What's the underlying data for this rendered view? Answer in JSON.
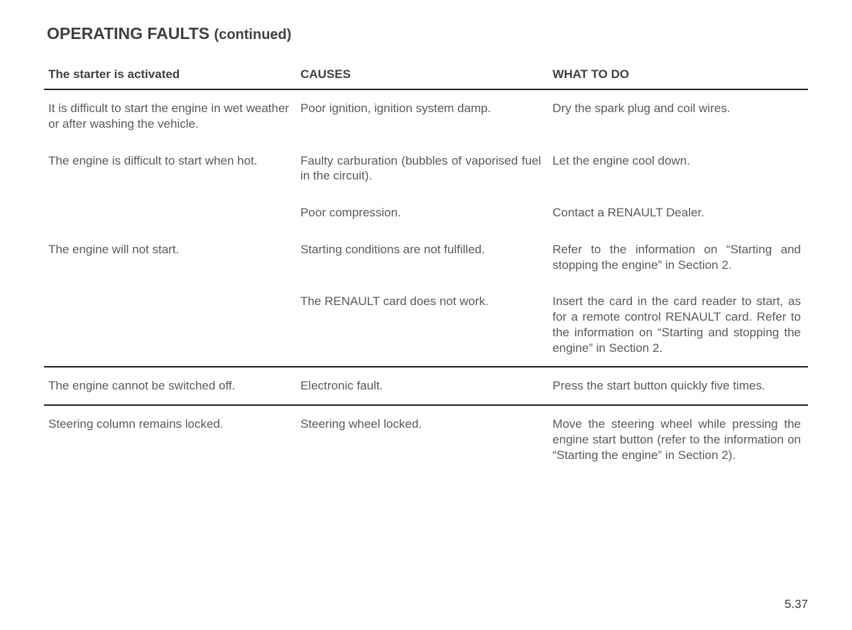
{
  "title_main": "OPERATING FAULTS",
  "title_cont": "(continued)",
  "headers": {
    "col1": "The starter is activated",
    "col2": "CAUSES",
    "col3": "WHAT TO DO"
  },
  "rows": [
    {
      "symptom": "It is difficult to start the engine in wet weather or after washing the vehicle.",
      "cause": "Poor ignition, ignition system damp.",
      "action": "Dry the spark plug and coil wires."
    },
    {
      "symptom": "The engine is difficult to start when hot.",
      "cause": "Faulty carburation (bubbles of vaporised fuel in the circuit).",
      "action": "Let the engine cool down."
    },
    {
      "symptom": "",
      "cause": "Poor compression.",
      "action": "Contact a RENAULT Dealer."
    },
    {
      "symptom": "The engine will not start.",
      "cause": "Starting conditions are not fulfilled.",
      "action": "Refer to the information on “Starting and stopping the engine” in Section 2."
    },
    {
      "symptom": "",
      "cause": "The RENAULT card does not work.",
      "action": "Insert the card in the card reader to start, as for a remote control RENAULT card. Refer to the information on “Starting and stopping the engine” in Section 2."
    },
    {
      "symptom": "The engine cannot be switched off.",
      "cause": "Electronic fault.",
      "action": "Press the start button quickly five times."
    },
    {
      "symptom": "Steering column remains locked.",
      "cause": "Steering wheel locked.",
      "action": "Move the steering wheel while pressing the engine start button (refer to the infor­mation on “Starting the engine” in Section 2)."
    }
  ],
  "page_number": "5.37",
  "colors": {
    "text_heading": "#404040",
    "text_body": "#595959",
    "rule": "#222222",
    "background": "#ffffff"
  },
  "fonts": {
    "title_pt": 23,
    "header_pt": 17,
    "body_pt": 17
  }
}
